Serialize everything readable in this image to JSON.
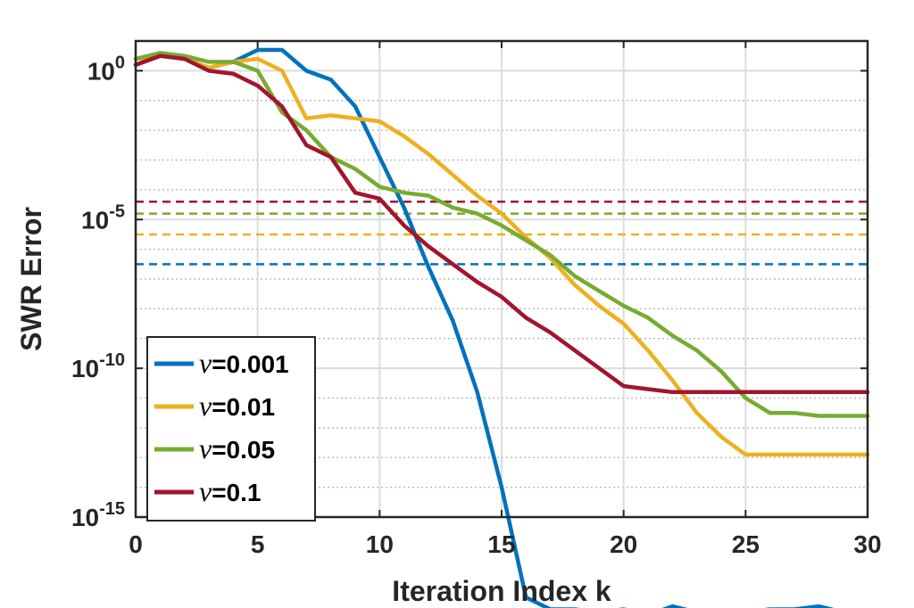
{
  "chart_data": {
    "type": "line",
    "title": "",
    "xlabel": "Iteration Index k",
    "ylabel": "SWR Error",
    "yscale": "log",
    "xlim": [
      0,
      30
    ],
    "ylim_exponent": [
      -15,
      1
    ],
    "x_ticks": [
      "0",
      "5",
      "10",
      "15",
      "20",
      "25",
      "30"
    ],
    "y_ticks": [
      {
        "base": "10",
        "exp": "0",
        "value_exp": 0
      },
      {
        "base": "10",
        "exp": "-5",
        "value_exp": -5
      },
      {
        "base": "10",
        "exp": "-10",
        "value_exp": -10
      },
      {
        "base": "10",
        "exp": "-15",
        "value_exp": -15
      }
    ],
    "legend_position": "bottom-left",
    "x": [
      0,
      1,
      2,
      3,
      4,
      5,
      6,
      7,
      8,
      9,
      10,
      11,
      12,
      13,
      14,
      15,
      16,
      17,
      18,
      19,
      20,
      21,
      22,
      23,
      24,
      25,
      26,
      27,
      28,
      29,
      30
    ],
    "series": [
      {
        "name": "=0.001",
        "symbol": "ν",
        "color": "#0072BD",
        "threshold_log10": -6.5,
        "log10_values": [
          0.2,
          0.5,
          0.4,
          0.1,
          0.3,
          0.7,
          0.7,
          0.0,
          -0.3,
          -1.2,
          -2.9,
          -4.6,
          -6.6,
          -8.4,
          -10.8,
          -14.0,
          -17.7,
          -18.1,
          -18.1,
          -18.2,
          -18.1,
          -18.3,
          -18.0,
          -18.2,
          -18.2,
          -18.2,
          -18.1,
          -18.1,
          -18.0,
          -18.2,
          -18.2
        ]
      },
      {
        "name": "=0.01",
        "symbol": "ν",
        "color": "#EDB120",
        "threshold_log10": -5.5,
        "log10_values": [
          0.4,
          0.5,
          0.4,
          0.1,
          0.3,
          0.4,
          0.0,
          -1.6,
          -1.5,
          -1.6,
          -1.7,
          -2.2,
          -2.8,
          -3.5,
          -4.2,
          -4.8,
          -5.6,
          -6.3,
          -7.2,
          -7.9,
          -8.5,
          -9.4,
          -10.4,
          -11.5,
          -12.3,
          -12.9,
          -12.9,
          -12.9,
          -12.9,
          -12.9,
          -12.9
        ]
      },
      {
        "name": "=0.05",
        "symbol": "ν",
        "color": "#77AC30",
        "threshold_log10": -4.8,
        "log10_values": [
          0.4,
          0.6,
          0.5,
          0.3,
          0.3,
          0.0,
          -1.4,
          -2.0,
          -2.9,
          -3.3,
          -3.9,
          -4.1,
          -4.2,
          -4.6,
          -4.8,
          -5.2,
          -5.7,
          -6.2,
          -6.9,
          -7.4,
          -7.9,
          -8.3,
          -8.9,
          -9.4,
          -10.1,
          -11.0,
          -11.5,
          -11.5,
          -11.6,
          -11.6,
          -11.6
        ]
      },
      {
        "name": "=0.1",
        "symbol": "ν",
        "color": "#A2142F",
        "threshold_log10": -4.4,
        "log10_values": [
          0.2,
          0.5,
          0.4,
          0.0,
          -0.1,
          -0.5,
          -1.2,
          -2.5,
          -2.9,
          -4.1,
          -4.3,
          -5.2,
          -5.9,
          -6.5,
          -7.1,
          -7.6,
          -8.3,
          -8.8,
          -9.4,
          -10.0,
          -10.6,
          -10.7,
          -10.8,
          -10.8,
          -10.8,
          -10.8,
          -10.8,
          -10.8,
          -10.8,
          -10.8,
          -10.8
        ]
      }
    ]
  }
}
